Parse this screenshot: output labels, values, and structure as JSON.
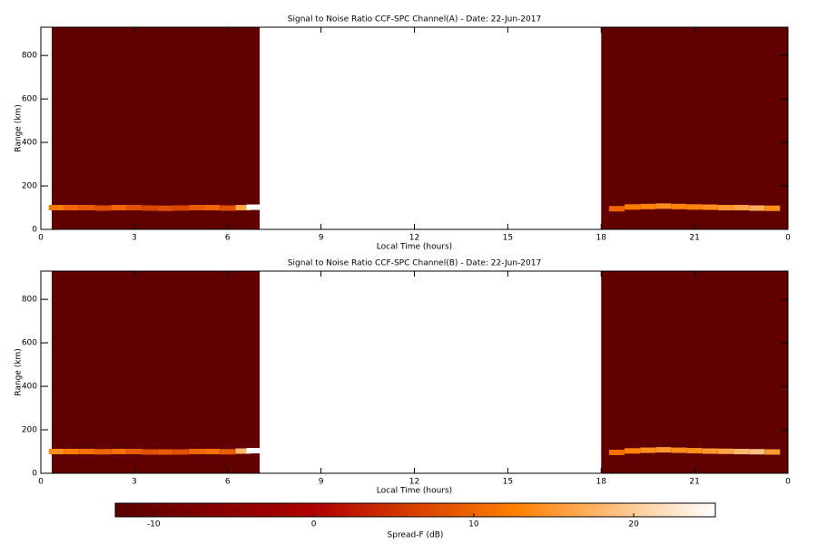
{
  "chart_data": [
    {
      "type": "heatmap",
      "title": "Signal to Noise Ratio CCF-SPC Channel(A) - Date: 22-Jun-2017",
      "xlabel": "Local Time (hours)",
      "ylabel": "Range (km)",
      "xlim": [
        0,
        24
      ],
      "xticks": [
        0,
        3,
        6,
        9,
        12,
        15,
        18,
        21,
        {
          "value": 24,
          "label": "0"
        }
      ],
      "ylim": [
        0,
        930
      ],
      "yticks": [
        0,
        200,
        400,
        600,
        800
      ],
      "observation_periods": [
        {
          "start": 0.35,
          "end": 7.03,
          "value": -11.5
        },
        {
          "start": 18.0,
          "end": 24,
          "value": -11.5
        }
      ],
      "x": [
        0.5,
        1,
        1.5,
        2,
        2.5,
        3,
        3.5,
        4,
        4.5,
        5,
        5.5,
        6,
        6.5,
        6.85,
        18.5,
        19,
        19.5,
        20,
        20.5,
        21,
        21.5,
        22,
        22.5,
        23,
        23.5
      ],
      "y": [
        100,
        100,
        100,
        98,
        100,
        100,
        98,
        97,
        98,
        100,
        100,
        98,
        100,
        102,
        95,
        103,
        105,
        107,
        105,
        103,
        102,
        100,
        100,
        98,
        97
      ],
      "values": [
        12,
        10,
        9,
        8,
        10,
        8,
        7,
        8,
        7,
        9,
        10,
        8,
        16,
        26,
        10,
        12,
        13,
        14,
        13,
        13,
        14,
        15,
        16,
        17,
        14
      ]
    },
    {
      "type": "heatmap",
      "title": "Signal to Noise Ratio CCF-SPC Channel(B) - Date: 22-Jun-2017",
      "xlabel": "Local Time (hours)",
      "ylabel": "Range (km)",
      "xlim": [
        0,
        24
      ],
      "xticks": [
        0,
        3,
        6,
        9,
        12,
        15,
        18,
        21,
        {
          "value": 24,
          "label": "0"
        }
      ],
      "ylim": [
        0,
        930
      ],
      "yticks": [
        0,
        200,
        400,
        600,
        800
      ],
      "observation_periods": [
        {
          "start": 0.35,
          "end": 7.03,
          "value": -11.5
        },
        {
          "start": 18.0,
          "end": 24,
          "value": -11.5
        }
      ],
      "x": [
        0.5,
        1,
        1.5,
        2,
        2.5,
        3,
        3.5,
        4,
        4.5,
        5,
        5.5,
        6,
        6.5,
        6.85,
        18.5,
        19,
        19.5,
        20,
        20.5,
        21,
        21.5,
        22,
        22.5,
        23,
        23.5
      ],
      "y": [
        100,
        100,
        100,
        99,
        100,
        100,
        98,
        98,
        98,
        100,
        100,
        99,
        102,
        104,
        96,
        103,
        106,
        108,
        106,
        104,
        102,
        101,
        100,
        99,
        98
      ],
      "values": [
        14,
        12,
        11,
        10,
        11,
        9,
        8,
        9,
        8,
        10,
        11,
        9,
        18,
        26,
        11,
        13,
        14,
        15,
        14,
        14,
        15,
        16,
        18,
        19,
        15
      ]
    }
  ],
  "colorbar": {
    "label": "Spread-F (dB)",
    "lim": [
      -12.4,
      25.1
    ],
    "ticks": [
      -10,
      0,
      10,
      20
    ],
    "colormap": [
      "#5a0000",
      "#b00000",
      "#ff8000",
      "#ffffff"
    ]
  }
}
